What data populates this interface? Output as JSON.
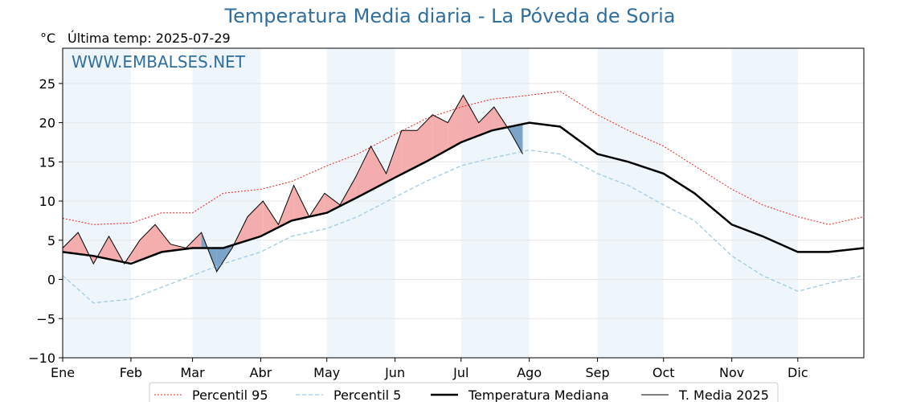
{
  "chart_data": {
    "type": "line",
    "title": "Temperatura Media diaria - La Póveda de Soria",
    "subtitle": "Última temp: 2025-07-29",
    "ylabel": "°C",
    "watermark": "WWW.EMBALSES.NET",
    "categories": [
      "Ene",
      "Feb",
      "Mar",
      "Abr",
      "May",
      "Jun",
      "Jul",
      "Ago",
      "Sep",
      "Oct",
      "Nov",
      "Dic"
    ],
    "ylim": [
      -10,
      29.5
    ],
    "yticks": [
      -10,
      -5,
      0,
      5,
      10,
      15,
      20,
      25
    ],
    "ytick_labels": [
      "−10",
      "−5",
      "0",
      "5",
      "10",
      "15",
      "20",
      "25"
    ],
    "grid": true,
    "legend_position": "bottom",
    "colors": {
      "p95": "#e8231e",
      "p5": "#9fcbe0",
      "mediana": "#000000",
      "media2025": "#000000",
      "above_fill": "#f4a5a5",
      "below_fill": "#6f9bc3",
      "band": "#eef5fb"
    },
    "series": [
      {
        "name": "Percentil 95",
        "style": "dotted-red",
        "x": [
          1,
          15,
          32,
          46,
          60,
          74,
          91,
          105,
          121,
          135,
          152,
          166,
          182,
          196,
          213,
          227,
          244,
          258,
          274,
          288,
          305,
          319,
          335,
          349,
          365
        ],
        "values": [
          7.8,
          7.0,
          7.2,
          8.5,
          8.5,
          11.0,
          11.5,
          12.5,
          14.5,
          16.0,
          18.5,
          20.5,
          22.0,
          23.0,
          23.5,
          24.0,
          21.0,
          19.0,
          17.0,
          14.5,
          11.5,
          9.5,
          8.0,
          7.0,
          8.0
        ]
      },
      {
        "name": "Percentil 5",
        "style": "dashed-lightblue",
        "x": [
          1,
          15,
          32,
          46,
          60,
          74,
          91,
          105,
          121,
          135,
          152,
          166,
          182,
          196,
          213,
          227,
          244,
          258,
          274,
          288,
          305,
          319,
          335,
          349,
          365
        ],
        "values": [
          0.5,
          -3.0,
          -2.5,
          -1.0,
          0.5,
          2.0,
          3.5,
          5.5,
          6.5,
          8.0,
          10.5,
          12.5,
          14.5,
          15.5,
          16.5,
          16.0,
          13.5,
          12.0,
          9.5,
          7.5,
          3.0,
          0.5,
          -1.5,
          -0.5,
          0.5
        ]
      },
      {
        "name": "Temperatura Mediana",
        "style": "thick-black",
        "x": [
          1,
          15,
          32,
          46,
          60,
          74,
          91,
          105,
          121,
          135,
          152,
          166,
          182,
          196,
          213,
          227,
          244,
          258,
          274,
          288,
          305,
          319,
          335,
          349,
          365
        ],
        "values": [
          3.5,
          3.0,
          2.0,
          3.5,
          4.0,
          4.0,
          5.5,
          7.5,
          8.5,
          10.5,
          13.0,
          15.0,
          17.5,
          19.0,
          20.0,
          19.5,
          16.0,
          15.0,
          13.5,
          11.0,
          7.0,
          5.5,
          3.5,
          3.5,
          4.0
        ]
      },
      {
        "name": "T. Media 2025",
        "style": "thin-black",
        "x": [
          1,
          8,
          15,
          22,
          29,
          36,
          43,
          50,
          57,
          64,
          71,
          78,
          85,
          92,
          99,
          106,
          113,
          120,
          127,
          134,
          141,
          148,
          155,
          162,
          169,
          176,
          183,
          190,
          197,
          204,
          210
        ],
        "values": [
          4.0,
          6.0,
          2.0,
          5.5,
          2.0,
          5.0,
          7.0,
          4.5,
          4.0,
          6.0,
          1.0,
          4.0,
          8.0,
          10.0,
          7.0,
          12.0,
          8.0,
          11.0,
          9.5,
          13.0,
          17.0,
          13.5,
          19.0,
          19.0,
          21.0,
          20.0,
          23.5,
          20.0,
          22.0,
          19.0,
          16.0
        ]
      }
    ]
  },
  "legend": [
    {
      "label": "Percentil 95"
    },
    {
      "label": "Percentil 5"
    },
    {
      "label": "Temperatura Mediana"
    },
    {
      "label": "T. Media 2025"
    }
  ]
}
